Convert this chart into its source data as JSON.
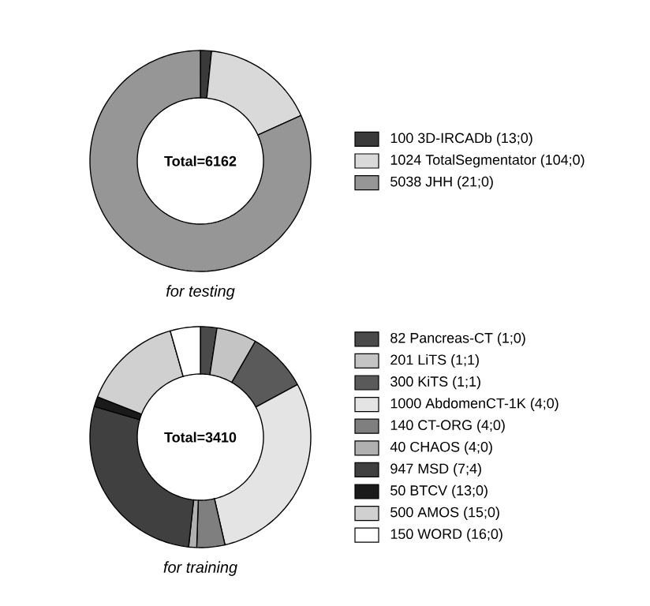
{
  "chart_data": [
    {
      "type": "donut",
      "categories": [
        "100 3D-IRCADb (13;0)",
        "1024 TotalSegmentator (104;0)",
        "5038 JHH (21;0)"
      ],
      "values": [
        100,
        1024,
        5038
      ],
      "colors": [
        "#3a3a3a",
        "#d9d9d9",
        "#969696"
      ],
      "legend": "right",
      "annotations": [
        "Total=6162",
        "for testing"
      ]
    },
    {
      "type": "donut",
      "categories": [
        "82 Pancreas-CT (1;0)",
        "201 LiTS (1;1)",
        "300 KiTS (1;1)",
        "1000 AbdomenCT-1K (4;0)",
        "140 CT-ORG (4;0)",
        "40 CHAOS (4;0)",
        "947 MSD (7;4)",
        "50 BTCV (13;0)",
        "500 AMOS (15;0)",
        "150 WORD (16;0)"
      ],
      "values": [
        82,
        201,
        300,
        1000,
        140,
        40,
        947,
        50,
        500,
        150
      ],
      "colors": [
        "#4a4a4a",
        "#c4c4c4",
        "#5a5a5a",
        "#e4e4e4",
        "#7f7f7f",
        "#b0b0b0",
        "#404040",
        "#1a1a1a",
        "#d0d0d0",
        "#ffffff"
      ],
      "legend": "right",
      "annotations": [
        "Total=3410",
        "for training"
      ]
    }
  ]
}
